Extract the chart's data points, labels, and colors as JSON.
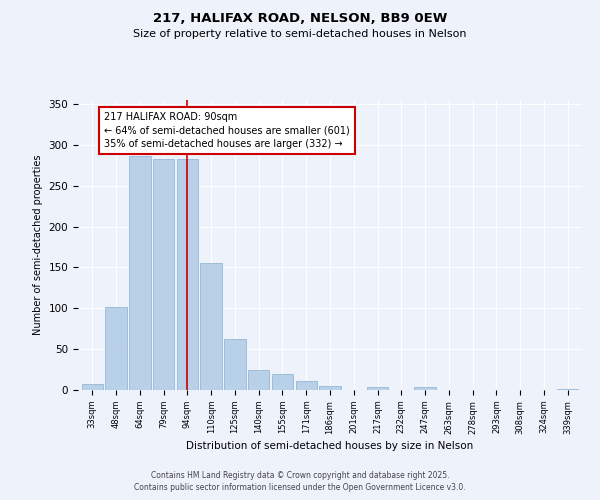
{
  "title": "217, HALIFAX ROAD, NELSON, BB9 0EW",
  "subtitle": "Size of property relative to semi-detached houses in Nelson",
  "xlabel": "Distribution of semi-detached houses by size in Nelson",
  "ylabel": "Number of semi-detached properties",
  "categories": [
    "33sqm",
    "48sqm",
    "64sqm",
    "79sqm",
    "94sqm",
    "110sqm",
    "125sqm",
    "140sqm",
    "155sqm",
    "171sqm",
    "186sqm",
    "201sqm",
    "217sqm",
    "232sqm",
    "247sqm",
    "263sqm",
    "278sqm",
    "293sqm",
    "308sqm",
    "324sqm",
    "339sqm"
  ],
  "values": [
    7,
    101,
    286,
    283,
    283,
    155,
    63,
    25,
    20,
    11,
    5,
    0,
    4,
    0,
    4,
    0,
    0,
    0,
    0,
    0,
    1
  ],
  "bar_color": "#b8d0e8",
  "bar_edge_color": "#8ab0d0",
  "vline_color": "#cc0000",
  "vline_bin_index": 4,
  "annotation_title": "217 HALIFAX ROAD: 90sqm",
  "annotation_line1": "← 64% of semi-detached houses are smaller (601)",
  "annotation_line2": "35% of semi-detached houses are larger (332) →",
  "annotation_box_color": "#cc0000",
  "ylim": [
    0,
    355
  ],
  "yticks": [
    0,
    50,
    100,
    150,
    200,
    250,
    300,
    350
  ],
  "background_color": "#eef2fb",
  "footer_line1": "Contains HM Land Registry data © Crown copyright and database right 2025.",
  "footer_line2": "Contains public sector information licensed under the Open Government Licence v3.0."
}
